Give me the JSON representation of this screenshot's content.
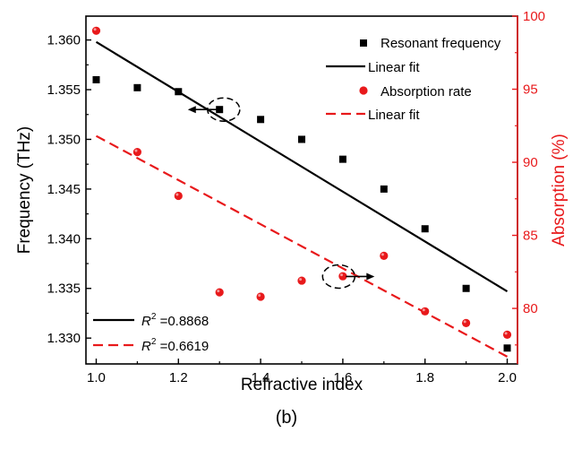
{
  "chart_data": {
    "type": "scatter",
    "panel_label": "(b)",
    "xlabel": "Refractive index",
    "ylabel_left": "Frequency (THz)",
    "ylabel_right": "Absorption (%)",
    "xlim": [
      0.975,
      2.025
    ],
    "ylim_left": [
      1.3274,
      1.3624
    ],
    "ylim_right": [
      76.2,
      100
    ],
    "x_ticks": [
      1.0,
      1.2,
      1.4,
      1.6,
      1.8,
      2.0
    ],
    "x_tick_labels": [
      "1.0",
      "1.2",
      "1.4",
      "1.6",
      "1.8",
      "2.0"
    ],
    "y_left_ticks": [
      1.33,
      1.335,
      1.34,
      1.345,
      1.35,
      1.355,
      1.36
    ],
    "y_left_tick_labels": [
      "1.330",
      "1.335",
      "1.340",
      "1.345",
      "1.350",
      "1.355",
      "1.360"
    ],
    "y_right_ticks": [
      80,
      85,
      90,
      95,
      100
    ],
    "y_right_tick_labels": [
      "80",
      "85",
      "90",
      "95",
      "100"
    ],
    "colors": {
      "left_axis": "#000000",
      "right_axis": "#e8191b"
    },
    "series": [
      {
        "name": "Resonant frequency",
        "axis": "left",
        "marker": "square",
        "color": "#000000",
        "x": [
          1.0,
          1.1,
          1.2,
          1.3,
          1.4,
          1.5,
          1.6,
          1.7,
          1.8,
          1.9,
          2.0
        ],
        "y": [
          1.356,
          1.3552,
          1.3548,
          1.353,
          1.352,
          1.35,
          1.348,
          1.345,
          1.341,
          1.335,
          1.329
        ]
      },
      {
        "name": "Linear fit",
        "axis": "left",
        "line": "solid",
        "color": "#000000",
        "x": [
          1.0,
          2.0
        ],
        "y": [
          1.3598,
          1.3347
        ]
      },
      {
        "name": "Absorption rate",
        "axis": "right",
        "marker": "circle",
        "color": "#e8191b",
        "x": [
          1.0,
          1.1,
          1.2,
          1.3,
          1.4,
          1.5,
          1.6,
          1.7,
          1.8,
          1.9,
          2.0
        ],
        "y": [
          99.0,
          90.7,
          87.7,
          81.1,
          80.8,
          81.9,
          82.2,
          83.6,
          79.8,
          79.0,
          78.2
        ]
      },
      {
        "name": "Linear fit",
        "axis": "right",
        "line": "dashed",
        "color": "#e8191b",
        "x": [
          1.0,
          2.0
        ],
        "y": [
          91.8,
          76.7
        ]
      }
    ],
    "legend": {
      "position": "top-right",
      "entries": [
        "Resonant frequency",
        "Linear fit",
        "Absorption rate",
        "Linear fit"
      ]
    },
    "annotations": {
      "r2_prefix": "R",
      "r2_superscript": "2",
      "r2_entries": [
        {
          "value": " =0.8868",
          "color": "#000000",
          "style": "solid"
        },
        {
          "value": " =0.6619",
          "color": "#e8191b",
          "style": "dashed"
        }
      ],
      "left_arrow_marker": {
        "x": 1.31,
        "y": 1.353,
        "axis": "left",
        "direction": "left"
      },
      "right_arrow_marker": {
        "x": 1.59,
        "y": 1.3362,
        "axis": "left",
        "direction": "right"
      }
    },
    "grid": false
  }
}
